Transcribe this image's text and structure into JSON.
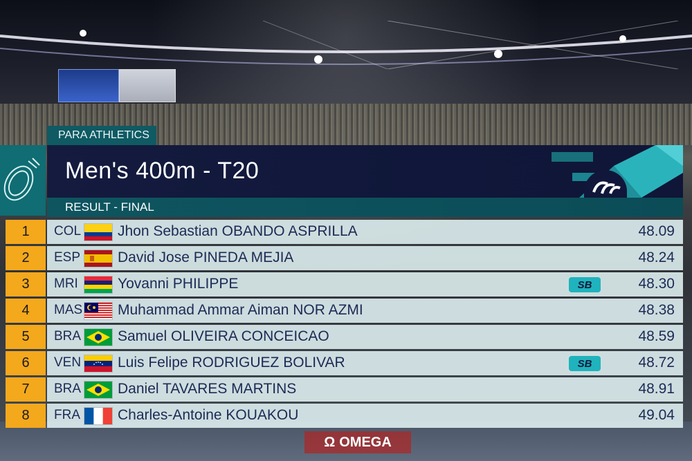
{
  "category": "PARA ATHLETICS",
  "title": "Men's 400m - T20",
  "subtitle": "RESULT - FINAL",
  "sponsor": "OMEGA",
  "colors": {
    "rank_bg": "#f4a81c",
    "title_bg": "#141b3e",
    "subtitle_bg": "#0e5560",
    "badge_bg": "#1fb3bd",
    "text_dark": "#1d2a55"
  },
  "results": [
    {
      "rank": "1",
      "country": "COL",
      "flag": "colombia-flag",
      "athlete": "Jhon Sebastian OBANDO ASPRILLA",
      "badge": "",
      "time": "48.09"
    },
    {
      "rank": "2",
      "country": "ESP",
      "flag": "spain-flag",
      "athlete": "David Jose PINEDA MEJIA",
      "badge": "",
      "time": "48.24"
    },
    {
      "rank": "3",
      "country": "MRI",
      "flag": "mauritius-flag",
      "athlete": "Yovanni PHILIPPE",
      "badge": "SB",
      "time": "48.30"
    },
    {
      "rank": "4",
      "country": "MAS",
      "flag": "malaysia-flag",
      "athlete": "Muhammad Ammar Aiman NOR AZMI",
      "badge": "",
      "time": "48.38"
    },
    {
      "rank": "5",
      "country": "BRA",
      "flag": "brazil-flag",
      "athlete": "Samuel OLIVEIRA CONCEICAO",
      "badge": "",
      "time": "48.59"
    },
    {
      "rank": "6",
      "country": "VEN",
      "flag": "venezuela-flag",
      "athlete": "Luis Felipe RODRIGUEZ BOLIVAR",
      "badge": "SB",
      "time": "48.72"
    },
    {
      "rank": "7",
      "country": "BRA",
      "flag": "brazil-flag",
      "athlete": "Daniel TAVARES MARTINS",
      "badge": "",
      "time": "48.91"
    },
    {
      "rank": "8",
      "country": "FRA",
      "flag": "france-flag",
      "athlete": "Charles-Antoine KOUAKOU",
      "badge": "",
      "time": "49.04"
    }
  ]
}
